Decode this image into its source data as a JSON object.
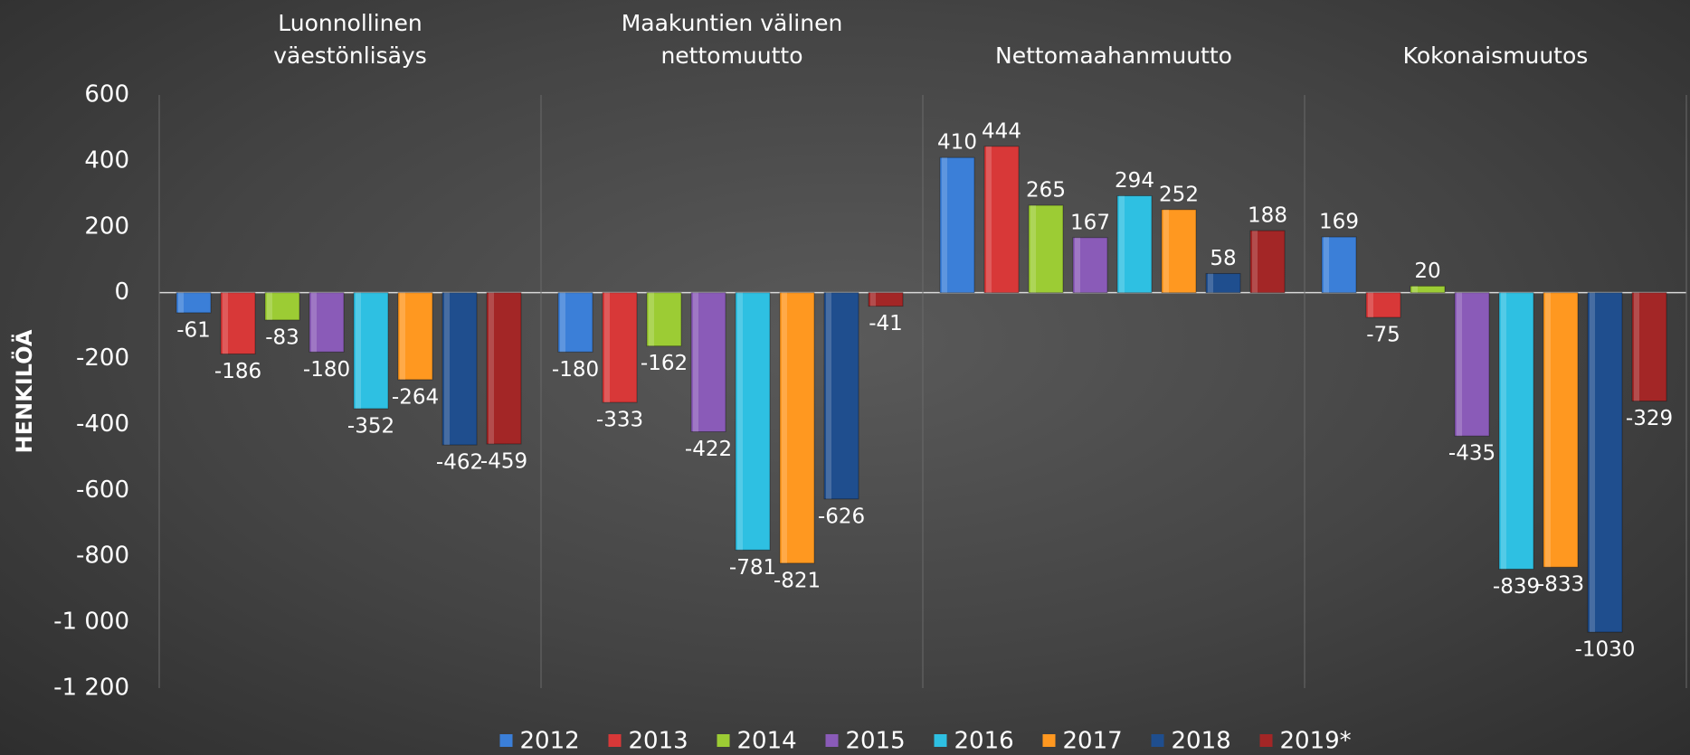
{
  "chart_data": {
    "type": "bar",
    "y_axis_label": "HENKILÖÄ",
    "categories": [
      "Luonnollinen väestönlisäys",
      "Maakuntien välinen nettomuutto",
      "Nettomaahanmuutto",
      "Kokonaismuutos"
    ],
    "series": [
      {
        "name": "2012",
        "color": "#3b7fd8",
        "values": [
          -61,
          -180,
          410,
          169
        ]
      },
      {
        "name": "2013",
        "color": "#d83838",
        "values": [
          -186,
          -333,
          444,
          -75
        ]
      },
      {
        "name": "2014",
        "color": "#9ccc34",
        "values": [
          -83,
          -162,
          265,
          20
        ]
      },
      {
        "name": "2015",
        "color": "#8a5bb8",
        "values": [
          -180,
          -422,
          167,
          -435
        ]
      },
      {
        "name": "2016",
        "color": "#2ec0e2",
        "values": [
          -352,
          -781,
          294,
          -839
        ]
      },
      {
        "name": "2017",
        "color": "#ff9820",
        "values": [
          -264,
          -821,
          252,
          -833
        ]
      },
      {
        "name": "2018",
        "color": "#1f4e8e",
        "values": [
          -462,
          -626,
          58,
          -1030
        ]
      },
      {
        "name": "2019*",
        "color": "#a32626",
        "values": [
          -459,
          -41,
          188,
          -329
        ]
      }
    ],
    "ylim": [
      -1200,
      600
    ],
    "yticks": [
      {
        "value": -1200,
        "label": "-1 200"
      },
      {
        "value": -1000,
        "label": "-1 000"
      },
      -800,
      -600,
      -400,
      -200,
      0,
      200,
      400,
      600
    ],
    "legend": "bottom"
  }
}
